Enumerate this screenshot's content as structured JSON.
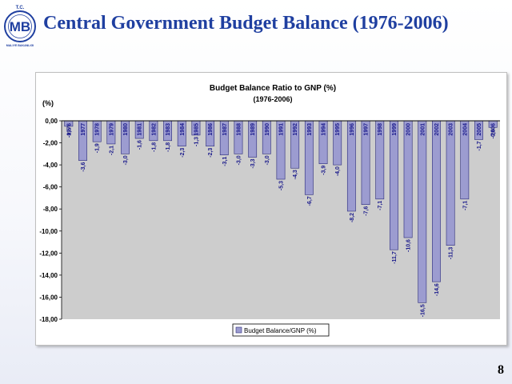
{
  "header": {
    "title": "Central Government Budget Balance (1976-2006)",
    "logo_text": "MB",
    "logo_top": "T.C.",
    "logo_ring": "MALIYE BAKANLIGI"
  },
  "footer": {
    "page_number": "8"
  },
  "colors": {
    "title": "#1f3fa0",
    "bar": "#9c9cd0",
    "bar_edge": "#2a2a7a",
    "plot_bg": "#cdcdcd",
    "label": "#1a1a8c"
  },
  "chart_data": {
    "type": "bar",
    "title": "Budget Balance Ratio to GNP (%)",
    "subtitle": "(1976-2006)",
    "ylabel": "(%)",
    "ylim": [
      -18,
      0
    ],
    "y_ticks": [
      "0,00",
      "-2,00",
      "-4,00",
      "-6,00",
      "-8,00",
      "-10,00",
      "-12,00",
      "-14,00",
      "-16,00",
      "-18,00"
    ],
    "categories": [
      "1976",
      "1977",
      "1978",
      "1979",
      "1980",
      "1981",
      "1982",
      "1983",
      "1984",
      "1985",
      "1986",
      "1987",
      "1988",
      "1989",
      "1990",
      "1991",
      "1992",
      "1993",
      "1994",
      "1995",
      "1996",
      "1997",
      "1998",
      "1999",
      "2000",
      "2001",
      "2002",
      "2003",
      "2004",
      "2005",
      "2006"
    ],
    "values": [
      -0.5,
      -3.6,
      -1.9,
      -2.1,
      -3.0,
      -1.6,
      -1.8,
      -1.8,
      -2.3,
      -1.3,
      -2.3,
      -3.1,
      -3.0,
      -3.3,
      -3.0,
      -5.3,
      -4.3,
      -6.7,
      -3.9,
      -4.0,
      -8.2,
      -7.6,
      -7.1,
      -11.7,
      -10.6,
      -16.5,
      -14.6,
      -11.3,
      -7.1,
      -1.7,
      -0.6
    ],
    "value_labels": [
      "-0,5",
      "-3,6",
      "-1,9",
      "-2,1",
      "-3,0",
      "-1,6",
      "-1,8",
      "-1,8",
      "-2,3",
      "-1,3",
      "-2,3",
      "-3,1",
      "-3,0",
      "-3,3",
      "-3,0",
      "-5,3",
      "-4,3",
      "-6,7",
      "-3,9",
      "-4,0",
      "-8,2",
      "-7,6",
      "-7,1",
      "-11,7",
      "-10,6",
      "-16,5",
      "-14,6",
      "-11,3",
      "-7,1",
      "-1,7",
      "-0,6"
    ],
    "legend": {
      "position": "bottom",
      "label": "Budget Balance/GNP (%)"
    },
    "grid": false
  }
}
